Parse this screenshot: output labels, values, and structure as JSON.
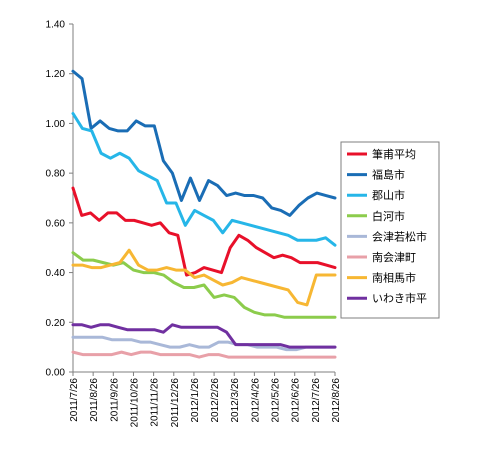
{
  "chart_data": {
    "type": "line",
    "title": "",
    "xlabel": "",
    "ylabel": "",
    "ylim": [
      0,
      1.4
    ],
    "y_ticks": [
      "0.00",
      "0.20",
      "0.40",
      "0.60",
      "0.80",
      "1.00",
      "1.20",
      "1.40"
    ],
    "x_tick_labels": [
      "2011/7/26",
      "2011/8/26",
      "2011/9/26",
      "2011/10/26",
      "2011/11/26",
      "2011/12/26",
      "2012/1/26",
      "2012/2/26",
      "2012/3/26",
      "2012/4/26",
      "2012/5/26",
      "2012/6/26",
      "2012/7/26",
      "2012/8/26"
    ],
    "grid": "none",
    "legend_position": "right",
    "series": [
      {
        "name": "筆甫平均",
        "color": "#e8102a",
        "values": [
          0.74,
          0.63,
          0.64,
          0.61,
          0.64,
          0.64,
          0.61,
          0.61,
          0.6,
          0.59,
          0.6,
          0.56,
          0.55,
          0.39,
          0.4,
          0.42,
          0.41,
          0.4,
          0.5,
          0.55,
          0.53,
          0.5,
          0.48,
          0.46,
          0.47,
          0.46,
          0.44,
          0.44,
          0.44,
          0.43,
          0.42
        ]
      },
      {
        "name": "福島市",
        "color": "#1a6db5",
        "values": [
          1.21,
          1.18,
          0.98,
          1.01,
          0.98,
          0.97,
          0.97,
          1.01,
          0.99,
          0.99,
          0.85,
          0.8,
          0.69,
          0.78,
          0.69,
          0.77,
          0.75,
          0.71,
          0.72,
          0.71,
          0.71,
          0.7,
          0.66,
          0.65,
          0.63,
          0.67,
          0.7,
          0.72,
          0.71,
          0.7
        ]
      },
      {
        "name": "郡山市",
        "color": "#26b6e8",
        "values": [
          1.04,
          0.98,
          0.97,
          0.88,
          0.86,
          0.88,
          0.86,
          0.81,
          0.79,
          0.77,
          0.68,
          0.68,
          0.59,
          0.65,
          0.63,
          0.61,
          0.56,
          0.61,
          0.6,
          0.59,
          0.58,
          0.57,
          0.56,
          0.55,
          0.53,
          0.53,
          0.53,
          0.54,
          0.51
        ]
      },
      {
        "name": "白河市",
        "color": "#8ccc4c",
        "values": [
          0.48,
          0.45,
          0.45,
          0.44,
          0.43,
          0.44,
          0.41,
          0.4,
          0.4,
          0.39,
          0.36,
          0.34,
          0.34,
          0.35,
          0.3,
          0.31,
          0.3,
          0.26,
          0.24,
          0.23,
          0.23,
          0.22,
          0.22,
          0.22,
          0.22,
          0.22,
          0.22
        ]
      },
      {
        "name": "会津若松市",
        "color": "#a9b8d8",
        "values": [
          0.14,
          0.14,
          0.14,
          0.14,
          0.13,
          0.13,
          0.13,
          0.12,
          0.12,
          0.11,
          0.1,
          0.1,
          0.11,
          0.1,
          0.1,
          0.12,
          0.12,
          0.11,
          0.11,
          0.1,
          0.1,
          0.1,
          0.09,
          0.09,
          0.1,
          0.1,
          0.1,
          0.1
        ]
      },
      {
        "name": "南会津町",
        "color": "#e8a0a8",
        "values": [
          0.08,
          0.07,
          0.07,
          0.07,
          0.07,
          0.08,
          0.07,
          0.08,
          0.08,
          0.07,
          0.07,
          0.07,
          0.07,
          0.06,
          0.07,
          0.07,
          0.06,
          0.06,
          0.06,
          0.06,
          0.06,
          0.06,
          0.06,
          0.06,
          0.06,
          0.06,
          0.06,
          0.06
        ]
      },
      {
        "name": "南相馬市",
        "color": "#f7b733",
        "values": [
          0.43,
          0.43,
          0.42,
          0.42,
          0.43,
          0.44,
          0.49,
          0.43,
          0.41,
          0.41,
          0.42,
          0.41,
          0.41,
          0.38,
          0.39,
          0.37,
          0.35,
          0.36,
          0.38,
          0.37,
          0.36,
          0.35,
          0.34,
          0.33,
          0.28,
          0.27,
          0.39,
          0.39,
          0.39
        ]
      },
      {
        "name": "いわき市平",
        "color": "#7030a0",
        "values": [
          0.19,
          0.19,
          0.18,
          0.19,
          0.19,
          0.18,
          0.17,
          0.17,
          0.17,
          0.17,
          0.16,
          0.19,
          0.18,
          0.18,
          0.18,
          0.18,
          0.18,
          0.16,
          0.11,
          0.11,
          0.11,
          0.11,
          0.11,
          0.11,
          0.1,
          0.1,
          0.1,
          0.1,
          0.1,
          0.1
        ]
      }
    ]
  }
}
